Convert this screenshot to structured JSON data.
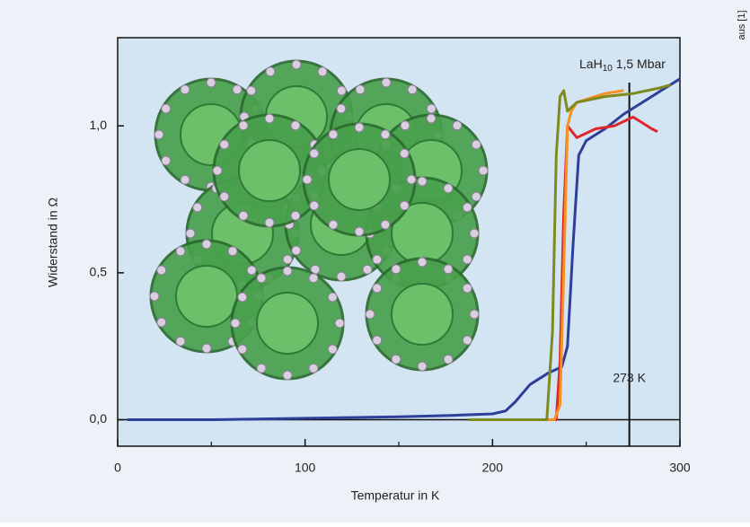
{
  "chart_data": {
    "type": "line",
    "xlabel": "Temperatur in K",
    "ylabel": "Widerstand in Ω",
    "annotation": {
      "parts": [
        "LaH",
        "10",
        " 1,5 Mbar"
      ]
    },
    "vline": {
      "x": 273,
      "label": "273 K"
    },
    "hlines": [
      0
    ],
    "source": "aus [1]",
    "xlim": [
      0,
      300
    ],
    "ylim": [
      -0.09,
      1.3
    ],
    "xticks": [
      0,
      100,
      200,
      300
    ],
    "xminorticks": [
      50,
      150,
      250
    ],
    "yticks": [
      {
        "value": 0,
        "label": "0,0"
      },
      {
        "value": 0.5,
        "label": "0,5"
      },
      {
        "value": 1.0,
        "label": "1,0"
      }
    ],
    "series": [
      {
        "color": "#2e3f9a",
        "x": [
          5,
          50,
          100,
          150,
          180,
          200,
          207,
          212,
          220,
          230,
          237,
          240,
          243,
          246,
          250,
          260,
          270,
          280,
          290,
          300
        ],
        "values": [
          0,
          0,
          0.005,
          0.01,
          0.015,
          0.02,
          0.03,
          0.06,
          0.12,
          0.16,
          0.18,
          0.25,
          0.6,
          0.9,
          0.95,
          0.99,
          1.04,
          1.08,
          1.12,
          1.16
        ]
      },
      {
        "color": "#e0262b",
        "x": [
          230,
          234,
          236,
          238,
          240,
          245,
          255,
          265,
          275,
          280,
          285,
          288
        ],
        "values": [
          0,
          0,
          0.2,
          0.7,
          1.0,
          0.96,
          0.99,
          1.0,
          1.03,
          1.01,
          0.99,
          0.98
        ]
      },
      {
        "color": "#f7921e",
        "x": [
          197,
          220,
          233,
          236,
          238,
          240,
          242,
          245,
          250,
          260,
          270
        ],
        "values": [
          0,
          0,
          0,
          0.05,
          0.5,
          1.0,
          1.05,
          1.08,
          1.09,
          1.11,
          1.12
        ]
      },
      {
        "color": "#7d8a1e",
        "x": [
          187,
          220,
          229,
          232,
          234,
          236,
          238,
          240,
          245,
          260,
          275,
          290,
          295
        ],
        "values": [
          0,
          0,
          0,
          0.3,
          0.9,
          1.1,
          1.12,
          1.05,
          1.08,
          1.1,
          1.11,
          1.13,
          1.14
        ]
      }
    ]
  }
}
